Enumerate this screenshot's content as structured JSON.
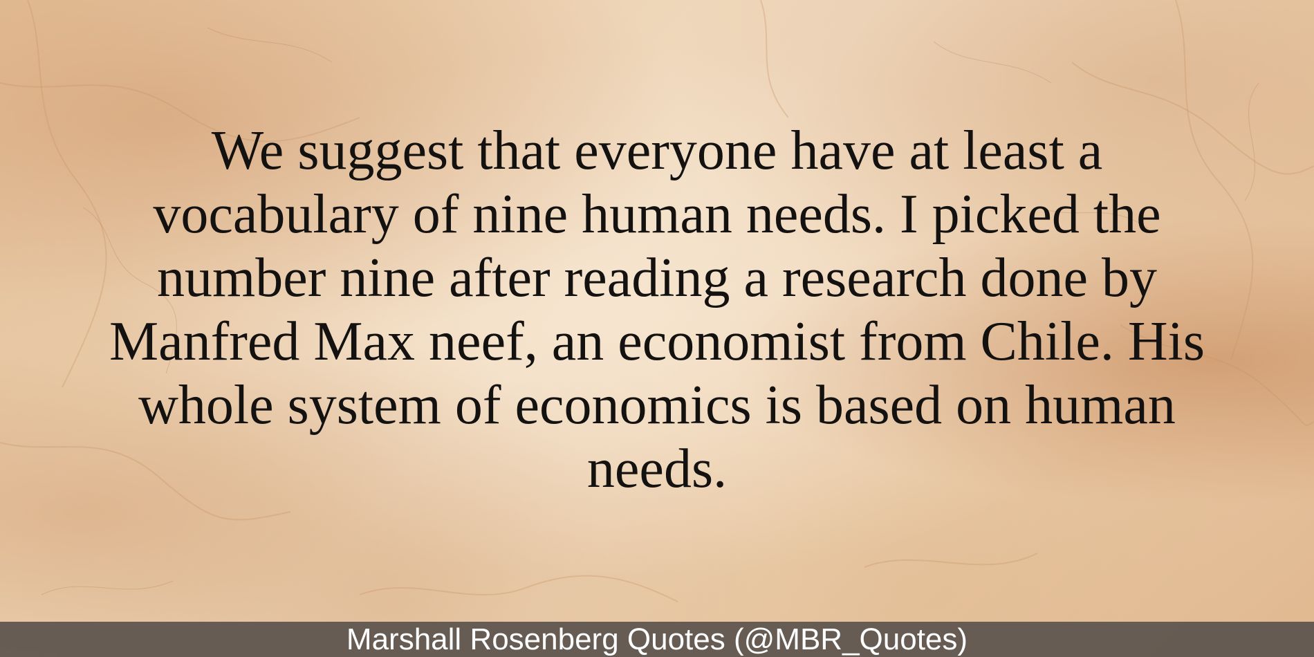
{
  "quote": {
    "text": "We suggest that everyone have at least a vocabulary of nine human needs. I picked the number nine after reading a research done by Manfred Max neef, an economist from Chile. His whole system of economics is based on human needs."
  },
  "footer": {
    "attribution": "Marshall Rosenberg Quotes (@MBR_Quotes)"
  },
  "colors": {
    "background": "#ebcfae",
    "quote_text": "#141210",
    "footer_bar": "#5c544e",
    "footer_text": "#ffffff"
  }
}
